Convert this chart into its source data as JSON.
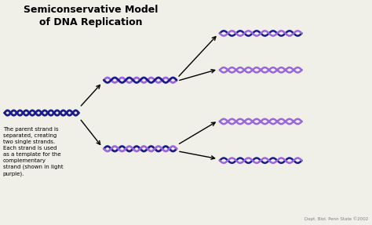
{
  "title_line1": "Semiconservative Model",
  "title_line2": "of DNA Replication",
  "annotation": "The parent strand is\nseparated, creating\ntwo single strands.\nEach strand is used\nas a template for the\ncomplementary\nstrand (shown in light\npurple).",
  "credit": "Dept. Biol. Penn State ©2002",
  "dark_blue": "#1a1a8c",
  "light_purple": "#9966dd",
  "bg_color": "#f0f0e8",
  "n_cycles": 5,
  "wave_amplitude": 0.032
}
